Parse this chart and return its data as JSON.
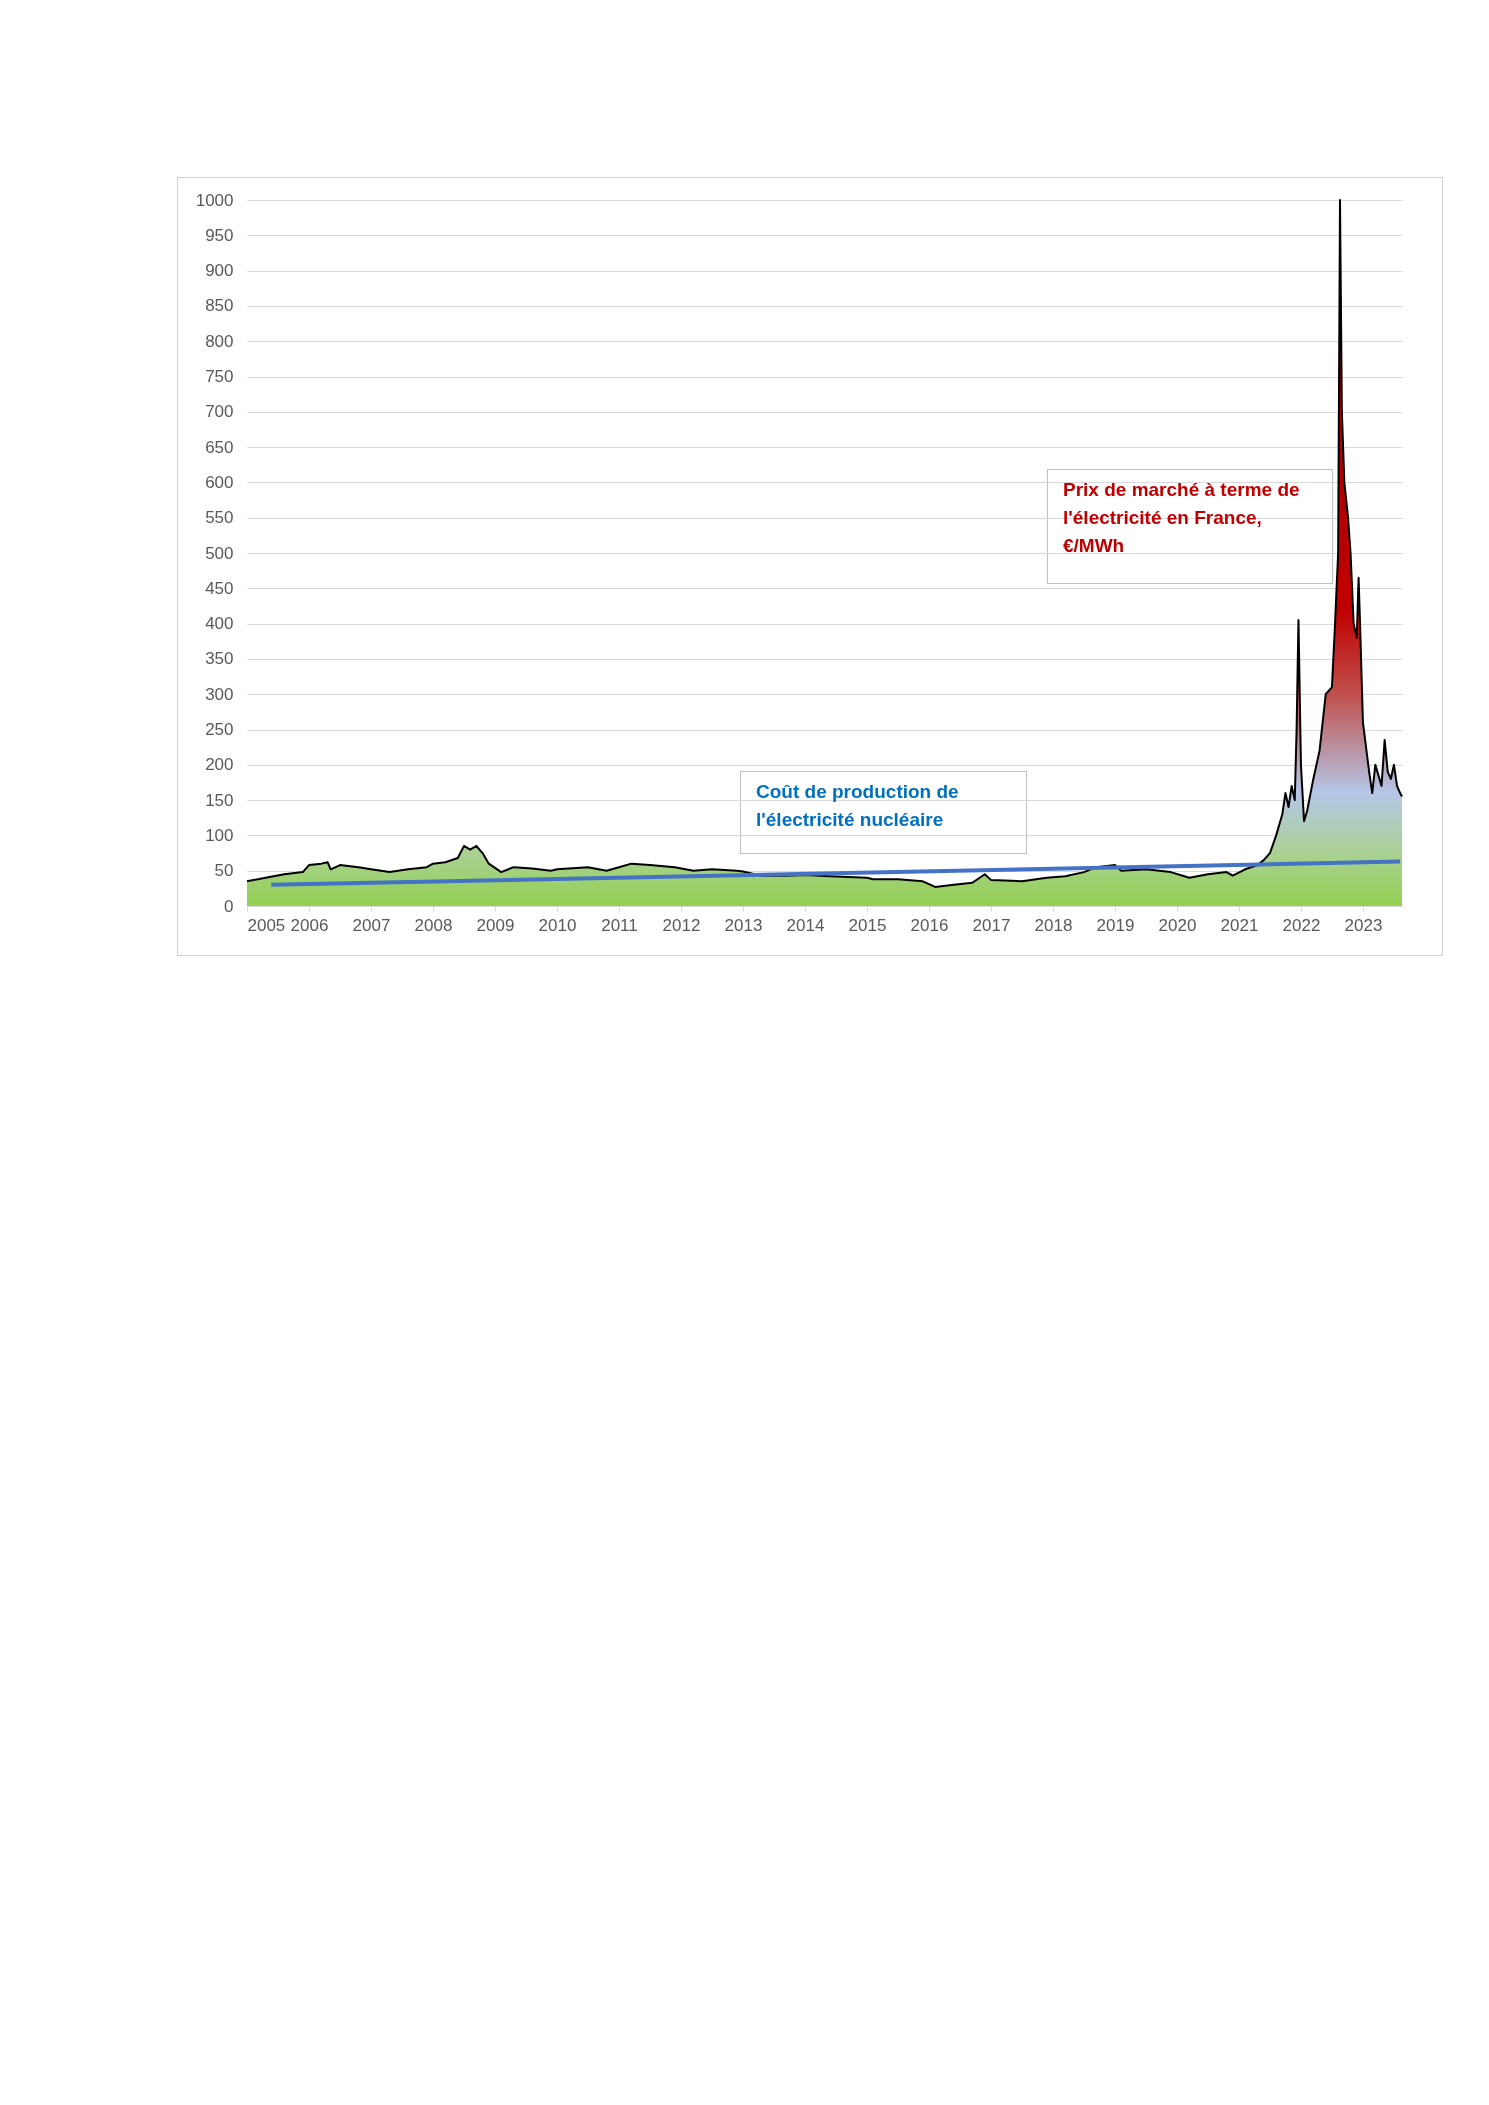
{
  "chart_data": {
    "type": "area",
    "xlim": [
      2005,
      2023.63
    ],
    "xticks": [
      2005,
      2006,
      2007,
      2008,
      2009,
      2010,
      2011,
      2012,
      2013,
      2014,
      2015,
      2016,
      2017,
      2018,
      2019,
      2020,
      2021,
      2022,
      2023
    ],
    "ylim": [
      0,
      1000
    ],
    "yticks": [
      0,
      50,
      100,
      150,
      200,
      250,
      300,
      350,
      400,
      450,
      500,
      550,
      600,
      650,
      700,
      750,
      800,
      850,
      900,
      950,
      {
        "value": 1000,
        "label": "1000"
      }
    ],
    "grid": "y",
    "legend": false,
    "series": [
      {
        "name": "Prix de marché à terme de l'électricité en France, €/MWh",
        "type": "area",
        "color": "#000000",
        "x": [
          2005,
          2005.3,
          2005.6,
          2005.9,
          2006.0,
          2006.2,
          2006.3,
          2006.35,
          2006.5,
          2006.8,
          2007.0,
          2007.3,
          2007.6,
          2007.9,
          2008.0,
          2008.2,
          2008.4,
          2008.5,
          2008.6,
          2008.7,
          2008.8,
          2008.9,
          2009.1,
          2009.3,
          2009.6,
          2009.9,
          2010.0,
          2010.5,
          2010.8,
          2011.0,
          2011.2,
          2011.5,
          2011.9,
          2012.2,
          2012.5,
          2012.9,
          2013.0,
          2013.3,
          2013.7,
          2014.0,
          2014.4,
          2015.0,
          2015.1,
          2015.5,
          2015.9,
          2016.1,
          2016.4,
          2016.7,
          2016.9,
          2017.0,
          2017.5,
          2017.9,
          2018.2,
          2018.5,
          2018.7,
          2019.0,
          2019.1,
          2019.5,
          2019.9,
          2020.2,
          2020.5,
          2020.8,
          2020.9,
          2021.1,
          2021.3,
          2021.4,
          2021.5,
          2021.6,
          2021.7,
          2021.75,
          2021.8,
          2021.85,
          2021.9,
          2021.93,
          2021.96,
          2022.0,
          2022.05,
          2022.1,
          2022.2,
          2022.3,
          2022.4,
          2022.5,
          2022.55,
          2022.6,
          2022.63,
          2022.66,
          2022.7,
          2022.76,
          2022.8,
          2022.85,
          2022.9,
          2022.93,
          2022.96,
          2023.0,
          2023.1,
          2023.15,
          2023.2,
          2023.3,
          2023.35,
          2023.4,
          2023.45,
          2023.5,
          2023.55,
          2023.6,
          2023.63
        ],
        "values": [
          35,
          40,
          45,
          48,
          58,
          60,
          62,
          52,
          58,
          55,
          52,
          48,
          52,
          55,
          60,
          62,
          68,
          85,
          80,
          85,
          75,
          60,
          48,
          55,
          53,
          50,
          52,
          55,
          50,
          55,
          60,
          58,
          55,
          50,
          52,
          50,
          49,
          43,
          43,
          44,
          42,
          40,
          38,
          38,
          35,
          27,
          30,
          33,
          45,
          37,
          35,
          40,
          42,
          48,
          55,
          58,
          50,
          52,
          48,
          40,
          45,
          48,
          43,
          52,
          58,
          65,
          75,
          100,
          130,
          160,
          140,
          170,
          150,
          250,
          405,
          200,
          120,
          135,
          180,
          220,
          300,
          310,
          400,
          500,
          1000,
          700,
          600,
          550,
          500,
          400,
          380,
          465,
          380,
          260,
          190,
          160,
          200,
          170,
          235,
          190,
          180,
          200,
          170,
          160,
          155
        ]
      },
      {
        "name": "Coût de production de l'électricité nucléaire",
        "type": "line",
        "color": "#4472c4",
        "x": [
          2005.39,
          2023.6
        ],
        "values": [
          30,
          63
        ]
      }
    ]
  }
}
